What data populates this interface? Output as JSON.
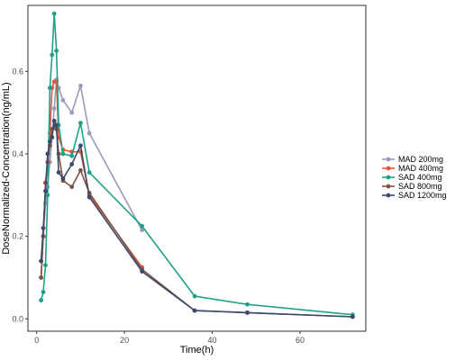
{
  "chart_data": {
    "type": "line",
    "title": "",
    "xlabel": "Time(h)",
    "ylabel": "DoseNormalized-Concentration(ng/mL)",
    "xlim": [
      -2,
      75
    ],
    "ylim": [
      -0.03,
      0.76
    ],
    "xticks": [
      0,
      20,
      40,
      60
    ],
    "yticks": [
      0.0,
      0.2,
      0.4,
      0.6
    ],
    "xtick_labels": [
      "0",
      "20",
      "40",
      "60"
    ],
    "ytick_labels": [
      "0.0",
      "0.2",
      "0.4",
      "0.6"
    ],
    "grid": false,
    "legend_position": "right",
    "series": [
      {
        "name": "MAD 200mg",
        "color": "#9a9bbb",
        "x": [
          1,
          1.5,
          2,
          2.5,
          3,
          3.5,
          4,
          4.5,
          5,
          6,
          8,
          10,
          12,
          24
        ],
        "y": [
          0.14,
          0.2,
          0.28,
          0.32,
          0.38,
          0.44,
          0.51,
          0.58,
          0.56,
          0.53,
          0.5,
          0.565,
          0.45,
          0.215
        ]
      },
      {
        "name": "MAD 400mg",
        "color": "#e8533a",
        "x": [
          1,
          1.5,
          2,
          2.5,
          3,
          3.5,
          4,
          4.5,
          5,
          6,
          8,
          10,
          12,
          24
        ],
        "y": [
          0.1,
          0.2,
          0.33,
          0.38,
          0.45,
          0.56,
          0.575,
          0.575,
          0.44,
          0.41,
          0.405,
          0.405,
          0.3,
          0.125
        ]
      },
      {
        "name": "SAD 400mg",
        "color": "#1fa187",
        "x": [
          1,
          1.5,
          2,
          2.5,
          3,
          3.5,
          4,
          4.5,
          5,
          6,
          8,
          10,
          12,
          24,
          36,
          48,
          72
        ],
        "y": [
          0.045,
          0.065,
          0.13,
          0.3,
          0.56,
          0.64,
          0.74,
          0.65,
          0.47,
          0.4,
          0.395,
          0.475,
          0.355,
          0.225,
          0.055,
          0.035,
          0.01
        ]
      },
      {
        "name": "SAD 800mg",
        "color": "#7a5548",
        "x": [
          1,
          1.5,
          2,
          2.5,
          3,
          3.5,
          4,
          4.5,
          5,
          6,
          8,
          10,
          12,
          24,
          36,
          48,
          72
        ],
        "y": [
          0.1,
          0.2,
          0.33,
          0.38,
          0.42,
          0.46,
          0.465,
          0.46,
          0.4,
          0.335,
          0.32,
          0.36,
          0.305,
          0.12,
          0.02,
          0.015,
          0.005
        ]
      },
      {
        "name": "SAD 1200mg",
        "color": "#3c4a6b",
        "x": [
          1,
          1.5,
          2,
          2.5,
          3,
          3.5,
          4,
          4.5,
          5,
          6,
          8,
          10,
          12,
          24,
          36,
          48,
          72
        ],
        "y": [
          0.14,
          0.22,
          0.31,
          0.4,
          0.43,
          0.44,
          0.48,
          0.47,
          0.355,
          0.34,
          0.375,
          0.42,
          0.295,
          0.115,
          0.02,
          0.015,
          0.005
        ]
      }
    ]
  }
}
